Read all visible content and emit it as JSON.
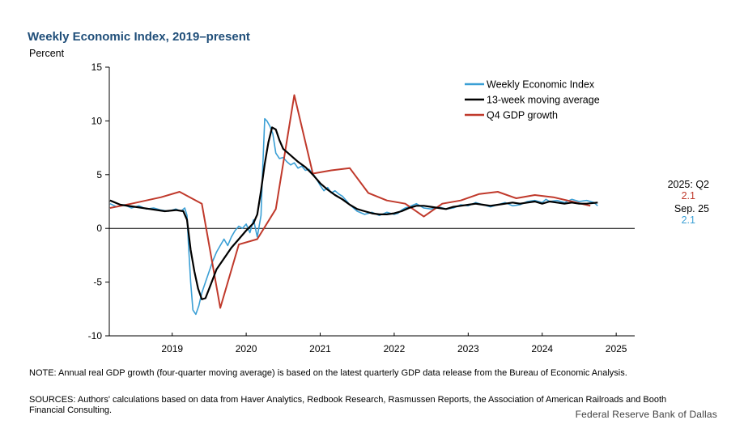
{
  "chart_data": {
    "type": "line",
    "title": "Weekly Economic Index, 2019–present",
    "ylabel": "Percent",
    "xlabel": "",
    "ylim": [
      -10,
      15
    ],
    "yticks": [
      15,
      10,
      5,
      0,
      -5,
      -10
    ],
    "xlim": [
      2018.15,
      2025.25
    ],
    "xticks": [
      "2019",
      "2020",
      "2021",
      "2022",
      "2023",
      "2024",
      "2025"
    ],
    "grid": false,
    "legend_position": "top-right",
    "series": [
      {
        "name": "Weekly Economic Index",
        "color": "#3a9fd5",
        "x": [
          2018.16,
          2018.25,
          2018.35,
          2018.45,
          2018.55,
          2018.65,
          2018.75,
          2018.85,
          2018.95,
          2019.05,
          2019.12,
          2019.17,
          2019.2,
          2019.22,
          2019.25,
          2019.28,
          2019.32,
          2019.36,
          2019.4,
          2019.45,
          2019.5,
          2019.55,
          2019.6,
          2019.65,
          2019.7,
          2019.75,
          2019.8,
          2019.85,
          2019.9,
          2019.95,
          2020.0,
          2020.05,
          2020.1,
          2020.15,
          2020.2,
          2020.22,
          2020.25,
          2020.28,
          2020.32,
          2020.36,
          2020.4,
          2020.45,
          2020.5,
          2020.55,
          2020.6,
          2020.65,
          2020.7,
          2020.75,
          2020.8,
          2020.85,
          2020.9,
          2020.95,
          2021.0,
          2021.05,
          2021.1,
          2021.15,
          2021.2,
          2021.25,
          2021.3,
          2021.35,
          2021.4,
          2021.5,
          2021.6,
          2021.7,
          2021.8,
          2021.9,
          2022.0,
          2022.05,
          2022.1,
          2022.15,
          2022.2,
          2022.3,
          2022.4,
          2022.5,
          2022.6,
          2022.7,
          2022.8,
          2022.9,
          2023.0,
          2023.1,
          2023.2,
          2023.3,
          2023.4,
          2023.5,
          2023.6,
          2023.7,
          2023.8,
          2023.9,
          2024.0,
          2024.05,
          2024.1,
          2024.2,
          2024.3,
          2024.4,
          2024.5,
          2024.6,
          2024.7,
          2024.75
        ],
        "values": [
          2.3,
          2.0,
          2.2,
          1.9,
          2.1,
          1.8,
          1.9,
          1.7,
          1.6,
          1.8,
          1.6,
          1.9,
          1.2,
          -1.5,
          -5.0,
          -7.6,
          -8.0,
          -7.2,
          -6.0,
          -5.0,
          -4.0,
          -3.0,
          -2.2,
          -1.6,
          -1.0,
          -1.6,
          -0.8,
          -0.2,
          0.2,
          0.0,
          0.4,
          -0.4,
          0.8,
          -0.8,
          1.2,
          5.0,
          10.2,
          10.0,
          9.5,
          8.8,
          7.0,
          6.5,
          6.6,
          6.2,
          5.9,
          6.1,
          5.6,
          5.8,
          5.4,
          5.5,
          5.1,
          4.6,
          4.0,
          3.5,
          3.8,
          3.3,
          3.5,
          3.2,
          3.0,
          2.6,
          2.2,
          1.6,
          1.3,
          1.5,
          1.2,
          1.5,
          1.3,
          1.4,
          1.7,
          1.9,
          2.0,
          2.3,
          1.9,
          1.8,
          2.0,
          1.8,
          1.9,
          2.2,
          2.1,
          2.4,
          2.2,
          2.0,
          2.2,
          2.4,
          2.1,
          2.2,
          2.5,
          2.6,
          2.4,
          2.7,
          2.5,
          2.6,
          2.4,
          2.7,
          2.5,
          2.6,
          2.4,
          2.1
        ]
      },
      {
        "name": "13-week moving average",
        "color": "#000000",
        "x": [
          2018.16,
          2018.3,
          2018.5,
          2018.7,
          2018.9,
          2019.05,
          2019.15,
          2019.2,
          2019.25,
          2019.3,
          2019.35,
          2019.4,
          2019.45,
          2019.5,
          2019.55,
          2019.6,
          2019.7,
          2019.8,
          2019.9,
          2020.0,
          2020.1,
          2020.15,
          2020.2,
          2020.25,
          2020.3,
          2020.35,
          2020.4,
          2020.45,
          2020.5,
          2020.6,
          2020.7,
          2020.8,
          2020.9,
          2021.0,
          2021.1,
          2021.2,
          2021.3,
          2021.4,
          2021.5,
          2021.6,
          2021.7,
          2021.8,
          2021.9,
          2022.0,
          2022.1,
          2022.2,
          2022.3,
          2022.4,
          2022.5,
          2022.6,
          2022.7,
          2022.8,
          2022.9,
          2023.0,
          2023.1,
          2023.2,
          2023.3,
          2023.4,
          2023.5,
          2023.6,
          2023.7,
          2023.8,
          2023.9,
          2024.0,
          2024.1,
          2024.2,
          2024.3,
          2024.4,
          2024.5,
          2024.6,
          2024.75
        ],
        "values": [
          2.6,
          2.2,
          2.0,
          1.8,
          1.6,
          1.7,
          1.6,
          0.8,
          -2.0,
          -4.0,
          -5.6,
          -6.6,
          -6.5,
          -5.6,
          -4.7,
          -3.8,
          -2.8,
          -1.8,
          -1.0,
          -0.2,
          0.5,
          1.3,
          3.5,
          6.0,
          8.0,
          9.4,
          9.2,
          8.2,
          7.4,
          6.8,
          6.2,
          5.7,
          5.0,
          4.2,
          3.6,
          3.1,
          2.7,
          2.2,
          1.8,
          1.6,
          1.4,
          1.3,
          1.3,
          1.4,
          1.6,
          1.9,
          2.1,
          2.1,
          2.0,
          1.9,
          1.8,
          2.0,
          2.1,
          2.2,
          2.3,
          2.2,
          2.1,
          2.2,
          2.3,
          2.4,
          2.3,
          2.4,
          2.5,
          2.3,
          2.5,
          2.4,
          2.3,
          2.4,
          2.3,
          2.3,
          2.4
        ]
      },
      {
        "name": "Q4 GDP growth",
        "color": "#c0392b",
        "x": [
          2018.16,
          2018.45,
          2018.85,
          2019.1,
          2019.4,
          2019.65,
          2019.9,
          2020.15,
          2020.4,
          2020.65,
          2020.9,
          2021.15,
          2021.4,
          2021.65,
          2021.9,
          2022.15,
          2022.4,
          2022.65,
          2022.9,
          2023.15,
          2023.4,
          2023.65,
          2023.9,
          2024.15,
          2024.4,
          2024.65
        ],
        "values": [
          1.9,
          2.3,
          2.9,
          3.4,
          2.3,
          -7.4,
          -1.5,
          -1.0,
          1.8,
          12.4,
          5.1,
          5.4,
          5.6,
          3.3,
          2.6,
          2.3,
          1.1,
          2.3,
          2.6,
          3.2,
          3.4,
          2.8,
          3.1,
          2.9,
          2.5,
          2.1
        ]
      }
    ],
    "annotations": [
      {
        "label": "2025: Q2",
        "value": "2.1",
        "color": "#c0392b"
      },
      {
        "label": "Sep. 25",
        "value": "2.1",
        "color": "#3a9fd5"
      }
    ]
  },
  "note": "NOTE: Annual real GDP growth (four-quarter moving average) is based on the latest quarterly GDP data release from the Bureau of Economic Analysis.",
  "sources": "SOURCES: Authors' calculations based on data from Haver Analytics, Redbook Research, Rasmussen Reports, the Association of American Railroads and Booth Financial Consulting.",
  "credit": "Federal Reserve Bank of Dallas"
}
